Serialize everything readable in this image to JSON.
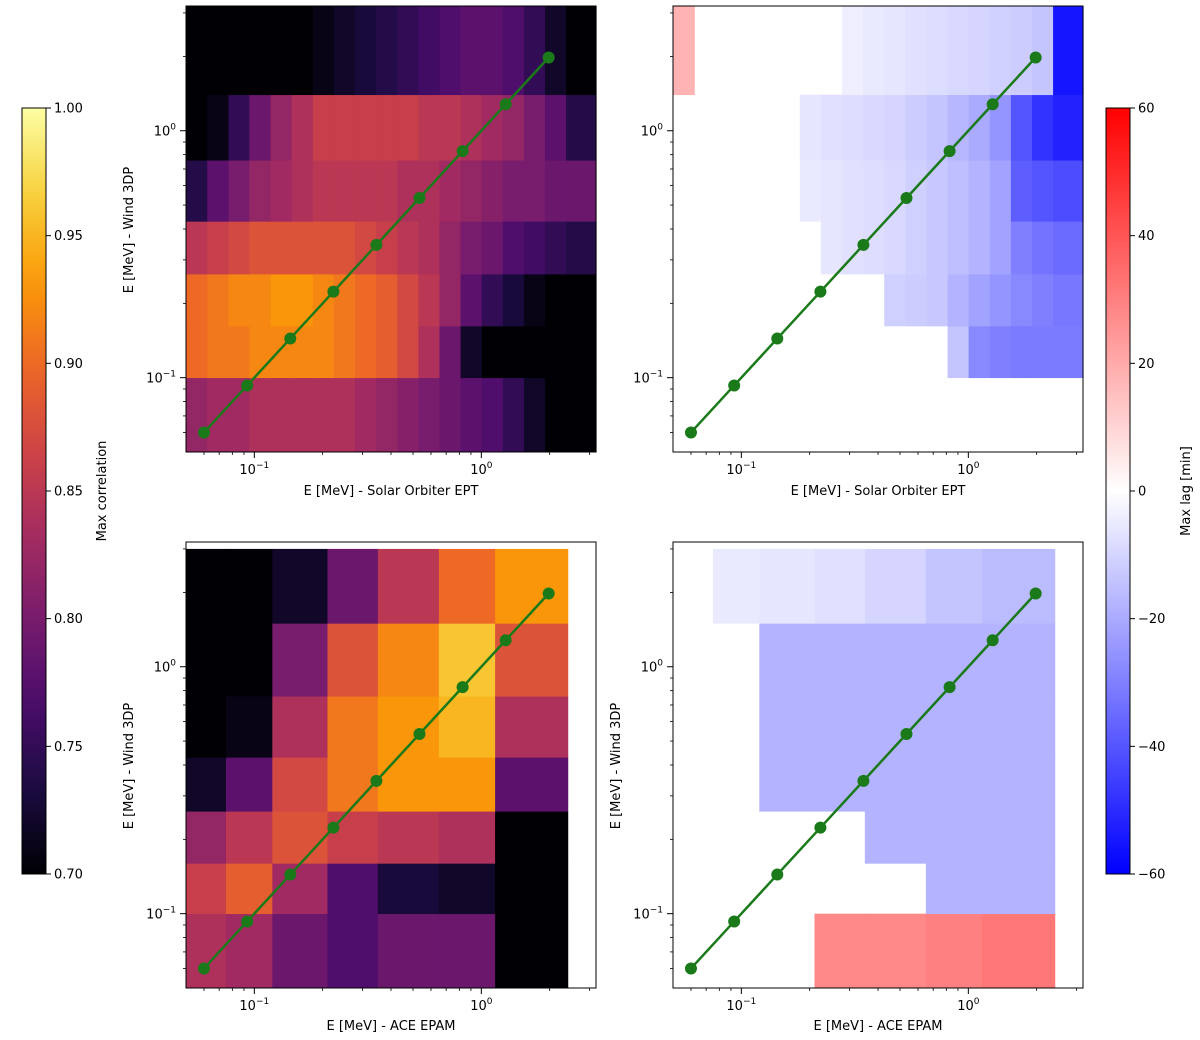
{
  "colors": {
    "diagonal_line": "#1a7a1a",
    "inferno_stops": [
      "#000004",
      "#1b0c41",
      "#4a0c6b",
      "#781c6d",
      "#a52c60",
      "#cf4446",
      "#ed6925",
      "#fb9b06",
      "#f7d13d",
      "#fcffa4"
    ]
  },
  "colorbars": {
    "correlation": {
      "label": "Max correlation",
      "cmap": "inferno",
      "range": [
        0.7,
        1.0
      ],
      "ticks": [
        "0.70",
        "0.75",
        "0.80",
        "0.85",
        "0.90",
        "0.95",
        "1.00"
      ]
    },
    "lag": {
      "label": "Max lag [min]",
      "cmap": "bwr",
      "range": [
        -60,
        60
      ],
      "ticks": [
        "−60",
        "−40",
        "−20",
        "0",
        "20",
        "40",
        "60"
      ]
    }
  },
  "chart_data": [
    {
      "type": "heatmap",
      "panel": "top-left",
      "metric": "correlation",
      "xlabel": "E [MeV] - Solar Orbiter EPT",
      "ylabel": "E [MeV] - Wind 3DP",
      "xscale": "log",
      "yscale": "log",
      "xlim": [
        0.05,
        3.2
      ],
      "ylim": [
        0.05,
        3.2
      ],
      "xticks": [
        {
          "v": 0.1,
          "label": "10",
          "exp": "−1"
        },
        {
          "v": 1,
          "label": "10",
          "exp": "0"
        }
      ],
      "yticks": [
        {
          "v": 0.1,
          "label": "10",
          "exp": "−1"
        },
        {
          "v": 1,
          "label": "10",
          "exp": "0"
        }
      ],
      "x_edges": [
        0.05,
        0.062,
        0.077,
        0.095,
        0.118,
        0.146,
        0.181,
        0.224,
        0.278,
        0.344,
        0.426,
        0.528,
        0.654,
        0.81,
        1.003,
        1.243,
        1.54,
        1.907,
        2.362,
        3.2
      ],
      "rows": [
        {
          "y0": 0.05,
          "y1": 0.1,
          "values": [
            0.82,
            0.83,
            0.83,
            0.84,
            0.84,
            0.84,
            0.84,
            0.84,
            0.83,
            0.82,
            0.81,
            0.8,
            0.79,
            0.78,
            0.77,
            0.75,
            0.72,
            0.7,
            0.7
          ]
        },
        {
          "y0": 0.1,
          "y1": 0.162,
          "values": [
            0.9,
            0.91,
            0.91,
            0.92,
            0.92,
            0.92,
            0.92,
            0.91,
            0.9,
            0.89,
            0.87,
            0.84,
            0.79,
            0.72,
            0.7,
            0.7,
            0.7,
            0.7,
            0.7
          ]
        },
        {
          "y0": 0.162,
          "y1": 0.263,
          "values": [
            0.9,
            0.91,
            0.92,
            0.92,
            0.93,
            0.93,
            0.92,
            0.91,
            0.9,
            0.89,
            0.87,
            0.85,
            0.82,
            0.78,
            0.75,
            0.73,
            0.71,
            0.7,
            0.7
          ]
        },
        {
          "y0": 0.263,
          "y1": 0.43,
          "values": [
            0.85,
            0.86,
            0.87,
            0.88,
            0.88,
            0.88,
            0.88,
            0.88,
            0.87,
            0.86,
            0.85,
            0.84,
            0.82,
            0.8,
            0.79,
            0.77,
            0.76,
            0.75,
            0.74
          ]
        },
        {
          "y0": 0.43,
          "y1": 0.76,
          "values": [
            0.74,
            0.78,
            0.8,
            0.82,
            0.83,
            0.84,
            0.85,
            0.85,
            0.85,
            0.85,
            0.84,
            0.84,
            0.83,
            0.82,
            0.81,
            0.8,
            0.8,
            0.79,
            0.79
          ]
        },
        {
          "y0": 0.76,
          "y1": 1.4,
          "values": [
            0.7,
            0.71,
            0.75,
            0.79,
            0.82,
            0.84,
            0.86,
            0.86,
            0.86,
            0.86,
            0.86,
            0.85,
            0.85,
            0.84,
            0.83,
            0.82,
            0.8,
            0.78,
            0.74
          ]
        },
        {
          "y0": 1.4,
          "y1": 3.2,
          "values": [
            0.7,
            0.7,
            0.7,
            0.7,
            0.7,
            0.7,
            0.71,
            0.72,
            0.73,
            0.74,
            0.75,
            0.76,
            0.77,
            0.78,
            0.78,
            0.77,
            0.75,
            0.72,
            0.7
          ]
        }
      ],
      "diagonal": [
        0.06,
        0.093,
        0.144,
        0.223,
        0.345,
        0.534,
        0.827,
        1.28,
        1.98
      ]
    },
    {
      "type": "heatmap",
      "panel": "top-right",
      "metric": "lag",
      "xlabel": "E [MeV] - Solar Orbiter EPT",
      "ylabel": "",
      "xscale": "log",
      "yscale": "log",
      "xlim": [
        0.05,
        3.2
      ],
      "ylim": [
        0.05,
        3.2
      ],
      "xticks": [
        {
          "v": 0.1,
          "label": "10",
          "exp": "−1"
        },
        {
          "v": 1,
          "label": "10",
          "exp": "0"
        }
      ],
      "yticks": [
        {
          "v": 0.1,
          "label": "10",
          "exp": "−1"
        },
        {
          "v": 1,
          "label": "10",
          "exp": "0"
        }
      ],
      "x_edges": [
        0.05,
        0.062,
        0.077,
        0.095,
        0.118,
        0.146,
        0.181,
        0.224,
        0.278,
        0.344,
        0.426,
        0.528,
        0.654,
        0.81,
        1.003,
        1.243,
        1.54,
        1.907,
        2.362,
        3.2
      ],
      "rows": [
        {
          "y0": 0.05,
          "y1": 0.1,
          "values": [
            null,
            null,
            null,
            null,
            null,
            null,
            null,
            null,
            null,
            null,
            null,
            null,
            null,
            null,
            null,
            null,
            null,
            null,
            null
          ]
        },
        {
          "y0": 0.1,
          "y1": 0.162,
          "values": [
            null,
            null,
            null,
            null,
            null,
            null,
            null,
            null,
            null,
            null,
            null,
            null,
            null,
            -14,
            -28,
            -30,
            -31,
            -31,
            -31
          ]
        },
        {
          "y0": 0.162,
          "y1": 0.263,
          "values": [
            null,
            null,
            null,
            null,
            null,
            null,
            null,
            null,
            null,
            null,
            -11,
            -12,
            -13,
            -18,
            -22,
            -25,
            -28,
            -30,
            -32
          ]
        },
        {
          "y0": 0.263,
          "y1": 0.43,
          "values": [
            null,
            null,
            null,
            null,
            null,
            null,
            null,
            -6,
            -7,
            -8,
            -9,
            -11,
            -13,
            -15,
            -18,
            -22,
            -30,
            -33,
            -35
          ]
        },
        {
          "y0": 0.43,
          "y1": 0.76,
          "values": [
            null,
            null,
            null,
            null,
            null,
            null,
            -5,
            -6,
            -7,
            -8,
            -9,
            -11,
            -13,
            -15,
            -18,
            -22,
            -38,
            -40,
            -42
          ]
        },
        {
          "y0": 0.76,
          "y1": 1.4,
          "values": [
            null,
            null,
            null,
            null,
            null,
            null,
            -6,
            -7,
            -8,
            -9,
            -10,
            -12,
            -14,
            -17,
            -20,
            -25,
            -40,
            -48,
            -52
          ]
        },
        {
          "y0": 1.4,
          "y1": 3.2,
          "values": [
            18,
            null,
            null,
            null,
            null,
            null,
            null,
            null,
            -4,
            -5,
            -6,
            -7,
            -8,
            -9,
            -10,
            -11,
            -12,
            -14,
            -55
          ]
        }
      ],
      "diagonal": [
        0.06,
        0.093,
        0.144,
        0.223,
        0.345,
        0.534,
        0.827,
        1.28,
        1.98
      ]
    },
    {
      "type": "heatmap",
      "panel": "bottom-left",
      "metric": "correlation",
      "xlabel": "E [MeV] - ACE EPAM",
      "ylabel": "E [MeV] - Wind 3DP",
      "xscale": "log",
      "yscale": "log",
      "xlim": [
        0.05,
        3.2
      ],
      "ylim": [
        0.05,
        3.2
      ],
      "xticks": [
        {
          "v": 0.1,
          "label": "10",
          "exp": "−1"
        },
        {
          "v": 1,
          "label": "10",
          "exp": "0"
        }
      ],
      "yticks": [
        {
          "v": 0.1,
          "label": "10",
          "exp": "−1"
        },
        {
          "v": 1,
          "label": "10",
          "exp": "0"
        }
      ],
      "x_edges": [
        0.05,
        0.075,
        0.12,
        0.21,
        0.35,
        0.65,
        1.15,
        2.4
      ],
      "rows": [
        {
          "y0": 0.05,
          "y1": 0.1,
          "values": [
            0.84,
            0.83,
            0.79,
            0.77,
            0.79,
            0.79,
            0.7
          ]
        },
        {
          "y0": 0.1,
          "y1": 0.16,
          "values": [
            0.86,
            0.89,
            0.83,
            0.77,
            0.73,
            0.72,
            0.7
          ]
        },
        {
          "y0": 0.16,
          "y1": 0.26,
          "values": [
            0.82,
            0.85,
            0.88,
            0.86,
            0.85,
            0.84,
            0.7
          ]
        },
        {
          "y0": 0.26,
          "y1": 0.43,
          "values": [
            0.72,
            0.78,
            0.87,
            0.91,
            0.93,
            0.93,
            0.78
          ]
        },
        {
          "y0": 0.43,
          "y1": 0.76,
          "values": [
            0.7,
            0.71,
            0.84,
            0.91,
            0.93,
            0.95,
            0.84
          ]
        },
        {
          "y0": 0.76,
          "y1": 1.5,
          "values": [
            0.7,
            0.7,
            0.8,
            0.88,
            0.92,
            0.96,
            0.88
          ]
        },
        {
          "y0": 1.5,
          "y1": 3.0,
          "values": [
            0.7,
            0.7,
            0.72,
            0.79,
            0.85,
            0.9,
            0.93
          ]
        }
      ],
      "diagonal": [
        0.06,
        0.093,
        0.144,
        0.223,
        0.345,
        0.534,
        0.827,
        1.28,
        1.98
      ]
    },
    {
      "type": "heatmap",
      "panel": "bottom-right",
      "metric": "lag",
      "xlabel": "E [MeV] - ACE EPAM",
      "ylabel": "E [MeV] - Wind 3DP",
      "xscale": "log",
      "yscale": "log",
      "xlim": [
        0.05,
        3.2
      ],
      "ylim": [
        0.05,
        3.2
      ],
      "xticks": [
        {
          "v": 0.1,
          "label": "10",
          "exp": "−1"
        },
        {
          "v": 1,
          "label": "10",
          "exp": "0"
        }
      ],
      "yticks": [
        {
          "v": 0.1,
          "label": "10",
          "exp": "−1"
        },
        {
          "v": 1,
          "label": "10",
          "exp": "0"
        }
      ],
      "x_edges": [
        0.05,
        0.075,
        0.12,
        0.21,
        0.35,
        0.65,
        1.15,
        2.4
      ],
      "rows": [
        {
          "y0": 0.05,
          "y1": 0.1,
          "values": [
            null,
            null,
            null,
            28,
            28,
            30,
            32
          ]
        },
        {
          "y0": 0.1,
          "y1": 0.16,
          "values": [
            null,
            null,
            null,
            null,
            null,
            -18,
            -18
          ]
        },
        {
          "y0": 0.16,
          "y1": 0.26,
          "values": [
            null,
            null,
            null,
            null,
            -18,
            -18,
            -18
          ]
        },
        {
          "y0": 0.26,
          "y1": 0.43,
          "values": [
            null,
            null,
            -18,
            -18,
            -18,
            -18,
            -18
          ]
        },
        {
          "y0": 0.43,
          "y1": 0.76,
          "values": [
            null,
            null,
            -18,
            -18,
            -18,
            -18,
            -18
          ]
        },
        {
          "y0": 0.76,
          "y1": 1.5,
          "values": [
            null,
            null,
            -18,
            -18,
            -18,
            -18,
            -18
          ]
        },
        {
          "y0": 1.5,
          "y1": 3.0,
          "values": [
            null,
            -5,
            -6,
            -7,
            -10,
            -14,
            -16
          ]
        }
      ],
      "diagonal": [
        0.06,
        0.093,
        0.144,
        0.223,
        0.345,
        0.534,
        0.827,
        1.28,
        1.98
      ]
    }
  ]
}
